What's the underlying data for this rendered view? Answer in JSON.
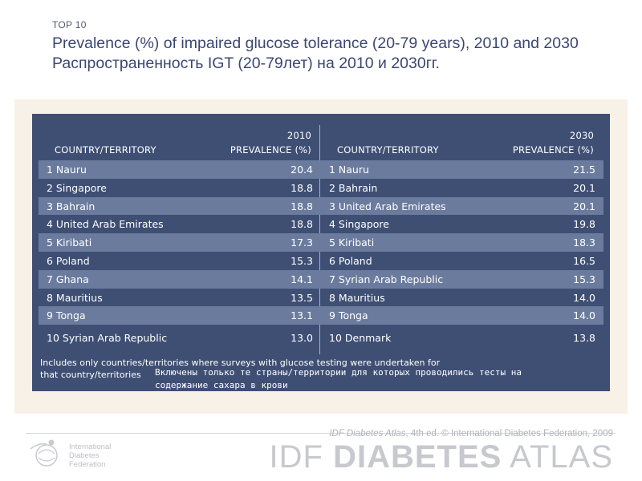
{
  "header": {
    "kicker": "TOP 10",
    "title": "Prevalence (%) of impaired glucose tolerance (20-79 years), 2010 and 2030 Распространенность IGT (20-79лет) на 2010 и 2030гг."
  },
  "table_2010": {
    "year": "2010",
    "col_country": "COUNTRY/TERRITORY",
    "col_prevalence": "PREVALENCE (%)",
    "rows": [
      {
        "name": "1 Nauru",
        "value": "20.4"
      },
      {
        "name": "2 Singapore",
        "value": "18.8"
      },
      {
        "name": "3 Bahrain",
        "value": "18.8"
      },
      {
        "name": "4 United Arab Emirates",
        "value": "18.8"
      },
      {
        "name": "5 Kiribati",
        "value": "17.3"
      },
      {
        "name": "6 Poland",
        "value": "15.3"
      },
      {
        "name": "7 Ghana",
        "value": "14.1"
      },
      {
        "name": "8 Mauritius",
        "value": "13.5"
      },
      {
        "name": "9 Tonga",
        "value": "13.1"
      },
      {
        "name": "10 Syrian Arab Republic",
        "value": "13.0"
      }
    ]
  },
  "table_2030": {
    "year": "2030",
    "col_country": "COUNTRY/TERRITORY",
    "col_prevalence": "PREVALENCE (%)",
    "rows": [
      {
        "name": "1 Nauru",
        "value": "21.5"
      },
      {
        "name": "2 Bahrain",
        "value": "20.1"
      },
      {
        "name": "3 United Arab Emirates",
        "value": "20.1"
      },
      {
        "name": "4 Singapore",
        "value": "19.8"
      },
      {
        "name": "5 Kiribati",
        "value": "18.3"
      },
      {
        "name": "6 Poland",
        "value": "16.5"
      },
      {
        "name": "7 Syrian Arab Republic",
        "value": "15.3"
      },
      {
        "name": "8 Mauritius",
        "value": "14.0"
      },
      {
        "name": "9 Tonga",
        "value": "14.0"
      },
      {
        "name": "10 Denmark",
        "value": "13.8"
      }
    ]
  },
  "footnote_en": "Includes only countries/territories where surveys with glucose testing were undertaken for that country/territories",
  "footnote_ru": "Включены только те страны/территории для которых проводились тесты на содержание сахара в крови",
  "footer": {
    "logo_text_line1": "International",
    "logo_text_line2": "Diabetes",
    "logo_text_line3": "Federation",
    "credit_italic": "IDF Diabetes Atlas",
    "credit_rest": ", 4th ed. © International Diabetes Federation, 2009",
    "atlas_prefix": "IDF ",
    "atlas_bold": "DIABETES",
    "atlas_suffix": " ATLAS"
  },
  "colors": {
    "panel": "#3f4f74",
    "row_shade": "#6b7b9e",
    "title": "#3c4672",
    "beige": "#f7f1e7"
  }
}
